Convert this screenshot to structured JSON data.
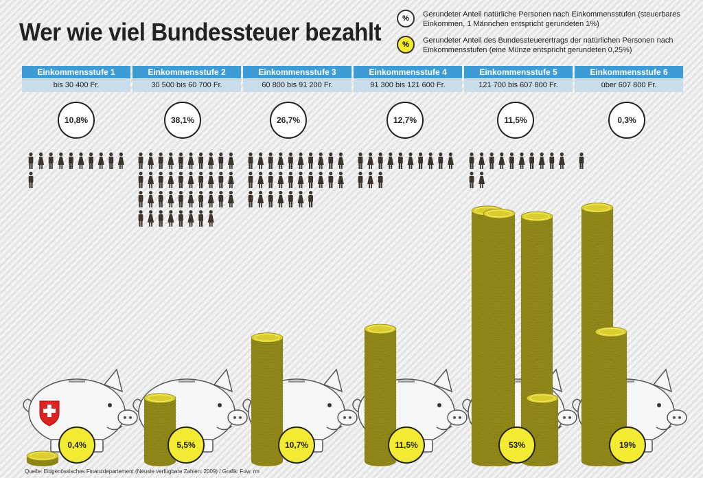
{
  "header": {
    "title": "Wer wie viel Bundessteuer bezahlt"
  },
  "legend": {
    "persons": {
      "badge": "%",
      "text": "Gerundeter Anteil natürliche Personen nach Einkommensstufen (steuerbares Einkommen, 1 Männchen entspricht gerundeten 1%)"
    },
    "revenue": {
      "badge": "%",
      "text": "Gerundeter Anteil des Bundessteuerertrags der natürlichen Personen nach Einkommensstufen (eine Münze entspricht gerundeten 0,25%)"
    }
  },
  "chart_data": {
    "type": "bar",
    "title": "Wer wie viel Bundessteuer bezahlt",
    "categories": [
      "Einkommensstufe 1",
      "Einkommensstufe 2",
      "Einkommensstufe 3",
      "Einkommensstufe 4",
      "Einkommensstufe 5",
      "Einkommensstufe 6"
    ],
    "ranges": [
      "bis 30 400 Fr.",
      "30 500 bis 60 700 Fr.",
      "60 800 bis 91 200 Fr.",
      "91 300 bis 121 600 Fr.",
      "121 700 bis 607 800 Fr.",
      "über 607 800 Fr."
    ],
    "series": [
      {
        "name": "Anteil natürliche Personen",
        "values": [
          10.8,
          38.1,
          26.7,
          12.7,
          11.5,
          0.3
        ],
        "labels": [
          "10,8%",
          "38,1%",
          "26,7%",
          "12,7%",
          "11,5%",
          "0,3%"
        ],
        "figures": [
          11,
          38,
          27,
          13,
          12,
          1
        ]
      },
      {
        "name": "Anteil Bundessteuerertrag",
        "values": [
          0.4,
          5.5,
          10.7,
          11.5,
          53,
          19
        ],
        "labels": [
          "0,4%",
          "5,5%",
          "10,7%",
          "11,5%",
          "53%",
          "19%"
        ]
      }
    ],
    "colors": {
      "header": "#3d9bd5",
      "range": "#c8dcea",
      "coin": "#d9cd2f",
      "coin_dark": "#8f861a",
      "badge": "#f3ea32",
      "person": "#3b3530",
      "pig": "#f6f6f6"
    }
  },
  "source": "Quelle: Eidgenössisches Finanzdepartement (Neuste verfügbare Zahlen: 2009) / Grafik: Fuw, rm"
}
